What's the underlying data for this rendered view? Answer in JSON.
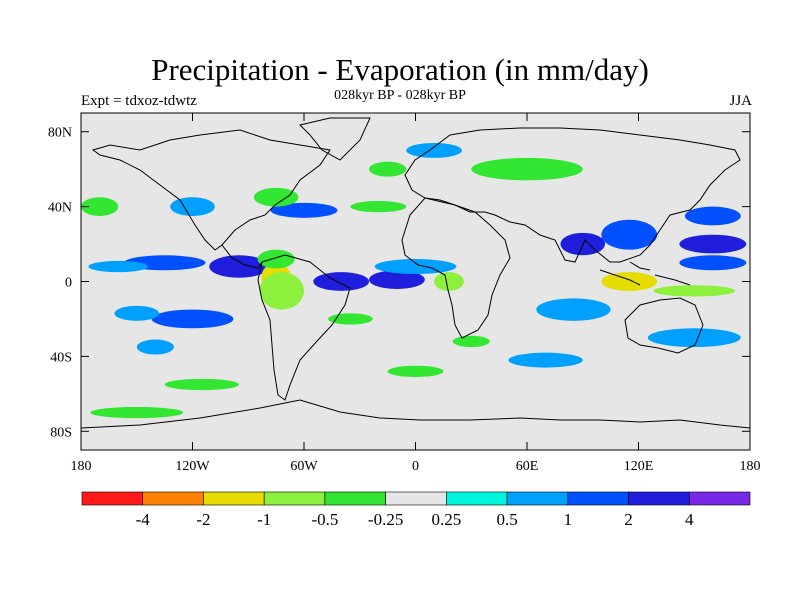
{
  "title": "Precipitation - Evaporation (in mm/day)",
  "subtitle": "028kyr BP - 028kyr BP",
  "left_label": "Expt = tdxoz-tdwtz",
  "right_label": "JJA",
  "map": {
    "projection": "cylindrical-equidistant",
    "lon_range": [
      -180,
      180
    ],
    "lat_range": [
      -90,
      90
    ],
    "x_ticks": [
      {
        "lon": -180,
        "label": "180"
      },
      {
        "lon": -120,
        "label": "120W"
      },
      {
        "lon": -60,
        "label": "60W"
      },
      {
        "lon": 0,
        "label": "0"
      },
      {
        "lon": 60,
        "label": "60E"
      },
      {
        "lon": 120,
        "label": "120E"
      },
      {
        "lon": 180,
        "label": "180"
      }
    ],
    "y_ticks": [
      {
        "lat": 80,
        "label": "80N"
      },
      {
        "lat": 40,
        "label": "40N"
      },
      {
        "lat": 0,
        "label": "0"
      },
      {
        "lat": -40,
        "label": "40S"
      },
      {
        "lat": -80,
        "label": "80S"
      }
    ],
    "background_color": "#e6e6e6"
  },
  "colorbar": {
    "colors": [
      "#ff1a1a",
      "#ff8000",
      "#e6dc00",
      "#8cf03c",
      "#32e632",
      "#e6e6e6",
      "#00f5dc",
      "#00a0ff",
      "#0050ff",
      "#1e1edc",
      "#7828e6"
    ],
    "labels": [
      "-4",
      "-2",
      "-1",
      "-0.5",
      "-0.25",
      "0.25",
      "0.5",
      "1",
      "2",
      "4"
    ]
  },
  "chart_data": {
    "type": "heatmap",
    "title": "Precipitation - Evaporation (in mm/day)",
    "subtitle": "028kyr BP - 028kyr BP",
    "levels": [
      -4,
      -2,
      -1,
      -0.5,
      -0.25,
      0.25,
      0.5,
      1,
      2,
      4
    ],
    "regions": [
      {
        "lon": -95,
        "lat": 8,
        "rlon": 16,
        "rlat": 6,
        "level": 2
      },
      {
        "lon": -135,
        "lat": 10,
        "rlon": 22,
        "rlat": 4,
        "level": 1
      },
      {
        "lon": -160,
        "lat": 8,
        "rlon": 16,
        "rlat": 3,
        "level": 0.5
      },
      {
        "lon": -75,
        "lat": 2,
        "rlon": 8,
        "rlat": 8,
        "level": -2
      },
      {
        "lon": -72,
        "lat": -5,
        "rlon": 12,
        "rlat": 10,
        "level": -1
      },
      {
        "lon": -75,
        "lat": 12,
        "rlon": 10,
        "rlat": 5,
        "level": -0.5
      },
      {
        "lon": -40,
        "lat": 0,
        "rlon": 15,
        "rlat": 5,
        "level": 2
      },
      {
        "lon": -10,
        "lat": 1,
        "rlon": 15,
        "rlat": 5,
        "level": 2
      },
      {
        "lon": 18,
        "lat": 0,
        "rlon": 8,
        "rlat": 5,
        "level": -1
      },
      {
        "lon": 0,
        "lat": 8,
        "rlon": 22,
        "rlat": 4,
        "level": 0.5
      },
      {
        "lon": -120,
        "lat": -20,
        "rlon": 22,
        "rlat": 5,
        "level": 1
      },
      {
        "lon": -150,
        "lat": -17,
        "rlon": 12,
        "rlat": 4,
        "level": 0.5
      },
      {
        "lon": -140,
        "lat": -35,
        "rlon": 10,
        "rlat": 4,
        "level": 0.5
      },
      {
        "lon": -35,
        "lat": -20,
        "rlon": 12,
        "rlat": 3,
        "level": -0.5
      },
      {
        "lon": -120,
        "lat": 40,
        "rlon": 12,
        "rlat": 5,
        "level": 0.5
      },
      {
        "lon": -170,
        "lat": 40,
        "rlon": 10,
        "rlat": 5,
        "level": -0.5
      },
      {
        "lon": -60,
        "lat": 38,
        "rlon": 18,
        "rlat": 4,
        "level": 1
      },
      {
        "lon": -75,
        "lat": 45,
        "rlon": 12,
        "rlat": 5,
        "level": -0.5
      },
      {
        "lon": -20,
        "lat": 40,
        "rlon": 15,
        "rlat": 3,
        "level": -0.5
      },
      {
        "lon": 60,
        "lat": 60,
        "rlon": 30,
        "rlat": 6,
        "level": -0.5
      },
      {
        "lon": 90,
        "lat": 20,
        "rlon": 12,
        "rlat": 6,
        "level": 2
      },
      {
        "lon": 115,
        "lat": 25,
        "rlon": 15,
        "rlat": 8,
        "level": 1
      },
      {
        "lon": 160,
        "lat": 20,
        "rlon": 18,
        "rlat": 5,
        "level": 2
      },
      {
        "lon": 160,
        "lat": 35,
        "rlon": 15,
        "rlat": 5,
        "level": 1
      },
      {
        "lon": 160,
        "lat": 10,
        "rlon": 18,
        "rlat": 4,
        "level": 1
      },
      {
        "lon": 115,
        "lat": 0,
        "rlon": 15,
        "rlat": 5,
        "level": -2
      },
      {
        "lon": 150,
        "lat": -5,
        "rlon": 22,
        "rlat": 3,
        "level": -1
      },
      {
        "lon": 85,
        "lat": -15,
        "rlon": 20,
        "rlat": 6,
        "level": 0.5
      },
      {
        "lon": 150,
        "lat": -30,
        "rlon": 25,
        "rlat": 5,
        "level": 0.5
      },
      {
        "lon": 70,
        "lat": -42,
        "rlon": 20,
        "rlat": 4,
        "level": 0.5
      },
      {
        "lon": 30,
        "lat": -32,
        "rlon": 10,
        "rlat": 3,
        "level": -0.5
      },
      {
        "lon": 0,
        "lat": -48,
        "rlon": 15,
        "rlat": 3,
        "level": -0.5
      },
      {
        "lon": -115,
        "lat": -55,
        "rlon": 20,
        "rlat": 3,
        "level": -0.5
      },
      {
        "lon": -150,
        "lat": -70,
        "rlon": 25,
        "rlat": 3,
        "level": -0.5
      },
      {
        "lon": 10,
        "lat": 70,
        "rlon": 15,
        "rlat": 4,
        "level": 0.5
      },
      {
        "lon": -15,
        "lat": 60,
        "rlon": 10,
        "rlat": 4,
        "level": -0.5
      }
    ]
  }
}
